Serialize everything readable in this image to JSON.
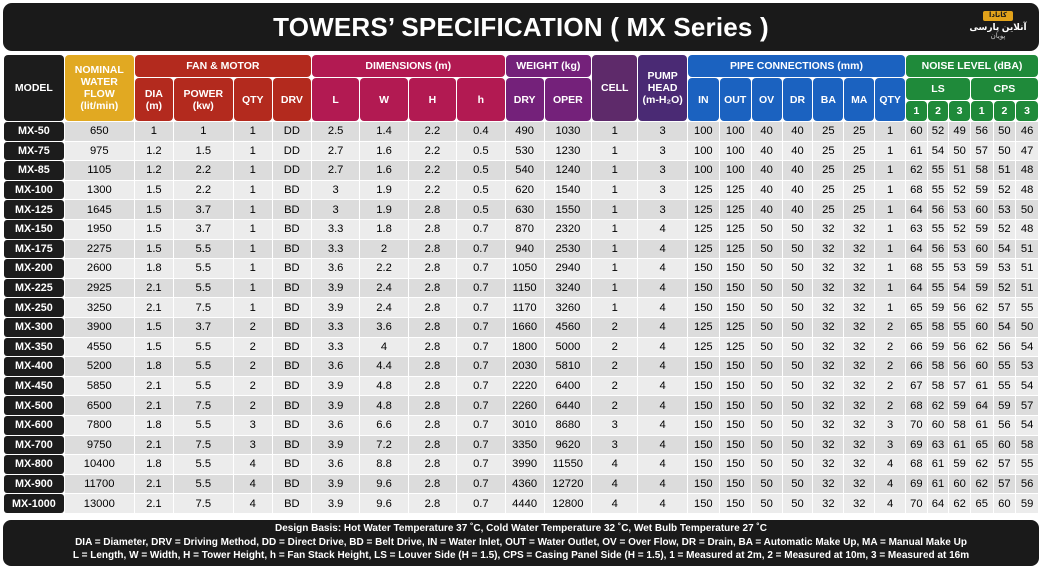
{
  "title": "TOWERS’ SPECIFICATION ( MX Series )",
  "logo": {
    "mark": "کانادا",
    "line1": "آنلاین پارسی",
    "line2": "پویان"
  },
  "headers": {
    "model": "MODEL",
    "flow": [
      "NOMINAL",
      "WATER",
      "FLOW",
      "(lit/min)"
    ],
    "fan_motor": "FAN & MOTOR",
    "dimensions": "DIMENSIONS (m)",
    "weight": "WEIGHT (kg)",
    "cell": "CELL",
    "pump": [
      "PUMP",
      "HEAD",
      "(m-H₂O)"
    ],
    "pipe": "PIPE CONNECTIONS (mm)",
    "noise": "NOISE LEVEL (dBA)",
    "fan_sub": [
      "DIA",
      "(m)",
      "POWER",
      "(kw)",
      "QTY",
      "DRV"
    ],
    "dim_sub": [
      "L",
      "W",
      "H",
      "h"
    ],
    "weight_sub": [
      "DRY",
      "OPER"
    ],
    "pipe_sub": [
      "IN",
      "OUT",
      "OV",
      "DR",
      "BA",
      "MA",
      "QTY"
    ],
    "noise_groups": [
      "LS",
      "CPS"
    ],
    "noise_sub": [
      "1",
      "2",
      "3",
      "1",
      "2",
      "3"
    ]
  },
  "rows": [
    [
      "MX-50",
      "650",
      "1",
      "1",
      "1",
      "DD",
      "2.5",
      "1.4",
      "2.2",
      "0.4",
      "490",
      "1030",
      "1",
      "3",
      "100",
      "100",
      "40",
      "40",
      "25",
      "25",
      "1",
      "60",
      "52",
      "49",
      "56",
      "50",
      "46"
    ],
    [
      "MX-75",
      "975",
      "1.2",
      "1.5",
      "1",
      "DD",
      "2.7",
      "1.6",
      "2.2",
      "0.5",
      "530",
      "1230",
      "1",
      "3",
      "100",
      "100",
      "40",
      "40",
      "25",
      "25",
      "1",
      "61",
      "54",
      "50",
      "57",
      "50",
      "47"
    ],
    [
      "MX-85",
      "1105",
      "1.2",
      "2.2",
      "1",
      "DD",
      "2.7",
      "1.6",
      "2.2",
      "0.5",
      "540",
      "1240",
      "1",
      "3",
      "100",
      "100",
      "40",
      "40",
      "25",
      "25",
      "1",
      "62",
      "55",
      "51",
      "58",
      "51",
      "48"
    ],
    [
      "MX-100",
      "1300",
      "1.5",
      "2.2",
      "1",
      "BD",
      "3",
      "1.9",
      "2.2",
      "0.5",
      "620",
      "1540",
      "1",
      "3",
      "125",
      "125",
      "40",
      "40",
      "25",
      "25",
      "1",
      "68",
      "55",
      "52",
      "59",
      "52",
      "48"
    ],
    [
      "MX-125",
      "1645",
      "1.5",
      "3.7",
      "1",
      "BD",
      "3",
      "1.9",
      "2.8",
      "0.5",
      "630",
      "1550",
      "1",
      "3",
      "125",
      "125",
      "40",
      "40",
      "25",
      "25",
      "1",
      "64",
      "56",
      "53",
      "60",
      "53",
      "50"
    ],
    [
      "MX-150",
      "1950",
      "1.5",
      "3.7",
      "1",
      "BD",
      "3.3",
      "1.8",
      "2.8",
      "0.7",
      "870",
      "2320",
      "1",
      "4",
      "125",
      "125",
      "50",
      "50",
      "32",
      "32",
      "1",
      "63",
      "55",
      "52",
      "59",
      "52",
      "48"
    ],
    [
      "MX-175",
      "2275",
      "1.5",
      "5.5",
      "1",
      "BD",
      "3.3",
      "2",
      "2.8",
      "0.7",
      "940",
      "2530",
      "1",
      "4",
      "125",
      "125",
      "50",
      "50",
      "32",
      "32",
      "1",
      "64",
      "56",
      "53",
      "60",
      "54",
      "51"
    ],
    [
      "MX-200",
      "2600",
      "1.8",
      "5.5",
      "1",
      "BD",
      "3.6",
      "2.2",
      "2.8",
      "0.7",
      "1050",
      "2940",
      "1",
      "4",
      "150",
      "150",
      "50",
      "50",
      "32",
      "32",
      "1",
      "68",
      "55",
      "53",
      "59",
      "53",
      "51"
    ],
    [
      "MX-225",
      "2925",
      "2.1",
      "5.5",
      "1",
      "BD",
      "3.9",
      "2.4",
      "2.8",
      "0.7",
      "1150",
      "3240",
      "1",
      "4",
      "150",
      "150",
      "50",
      "50",
      "32",
      "32",
      "1",
      "64",
      "55",
      "54",
      "59",
      "52",
      "51"
    ],
    [
      "MX-250",
      "3250",
      "2.1",
      "7.5",
      "1",
      "BD",
      "3.9",
      "2.4",
      "2.8",
      "0.7",
      "1170",
      "3260",
      "1",
      "4",
      "150",
      "150",
      "50",
      "50",
      "32",
      "32",
      "1",
      "65",
      "59",
      "56",
      "62",
      "57",
      "55"
    ],
    [
      "MX-300",
      "3900",
      "1.5",
      "3.7",
      "2",
      "BD",
      "3.3",
      "3.6",
      "2.8",
      "0.7",
      "1660",
      "4560",
      "2",
      "4",
      "125",
      "125",
      "50",
      "50",
      "32",
      "32",
      "2",
      "65",
      "58",
      "55",
      "60",
      "54",
      "50"
    ],
    [
      "MX-350",
      "4550",
      "1.5",
      "5.5",
      "2",
      "BD",
      "3.3",
      "4",
      "2.8",
      "0.7",
      "1800",
      "5000",
      "2",
      "4",
      "125",
      "125",
      "50",
      "50",
      "32",
      "32",
      "2",
      "66",
      "59",
      "56",
      "62",
      "56",
      "54"
    ],
    [
      "MX-400",
      "5200",
      "1.8",
      "5.5",
      "2",
      "BD",
      "3.6",
      "4.4",
      "2.8",
      "0.7",
      "2030",
      "5810",
      "2",
      "4",
      "150",
      "150",
      "50",
      "50",
      "32",
      "32",
      "2",
      "66",
      "58",
      "56",
      "60",
      "55",
      "53"
    ],
    [
      "MX-450",
      "5850",
      "2.1",
      "5.5",
      "2",
      "BD",
      "3.9",
      "4.8",
      "2.8",
      "0.7",
      "2220",
      "6400",
      "2",
      "4",
      "150",
      "150",
      "50",
      "50",
      "32",
      "32",
      "2",
      "67",
      "58",
      "57",
      "61",
      "55",
      "54"
    ],
    [
      "MX-500",
      "6500",
      "2.1",
      "7.5",
      "2",
      "BD",
      "3.9",
      "4.8",
      "2.8",
      "0.7",
      "2260",
      "6440",
      "2",
      "4",
      "150",
      "150",
      "50",
      "50",
      "32",
      "32",
      "2",
      "68",
      "62",
      "59",
      "64",
      "59",
      "57"
    ],
    [
      "MX-600",
      "7800",
      "1.8",
      "5.5",
      "3",
      "BD",
      "3.6",
      "6.6",
      "2.8",
      "0.7",
      "3010",
      "8680",
      "3",
      "4",
      "150",
      "150",
      "50",
      "50",
      "32",
      "32",
      "3",
      "70",
      "60",
      "58",
      "61",
      "56",
      "54"
    ],
    [
      "MX-700",
      "9750",
      "2.1",
      "7.5",
      "3",
      "BD",
      "3.9",
      "7.2",
      "2.8",
      "0.7",
      "3350",
      "9620",
      "3",
      "4",
      "150",
      "150",
      "50",
      "50",
      "32",
      "32",
      "3",
      "69",
      "63",
      "61",
      "65",
      "60",
      "58"
    ],
    [
      "MX-800",
      "10400",
      "1.8",
      "5.5",
      "4",
      "BD",
      "3.6",
      "8.8",
      "2.8",
      "0.7",
      "3990",
      "11550",
      "4",
      "4",
      "150",
      "150",
      "50",
      "50",
      "32",
      "32",
      "4",
      "68",
      "61",
      "59",
      "62",
      "57",
      "55"
    ],
    [
      "MX-900",
      "11700",
      "2.1",
      "5.5",
      "4",
      "BD",
      "3.9",
      "9.6",
      "2.8",
      "0.7",
      "4360",
      "12720",
      "4",
      "4",
      "150",
      "150",
      "50",
      "50",
      "32",
      "32",
      "4",
      "69",
      "61",
      "60",
      "62",
      "57",
      "56"
    ],
    [
      "MX-1000",
      "13000",
      "2.1",
      "7.5",
      "4",
      "BD",
      "3.9",
      "9.6",
      "2.8",
      "0.7",
      "4440",
      "12800",
      "4",
      "4",
      "150",
      "150",
      "50",
      "50",
      "32",
      "32",
      "4",
      "70",
      "64",
      "62",
      "65",
      "60",
      "59"
    ]
  ],
  "footer": [
    "Design Basis: Hot Water Temperature 37 ˚C, Cold Water Temperature 32 ˚C, Wet Bulb Temperature 27 ˚C",
    "DIA = Diameter, DRV = Driving Method, DD = Direct Drive, BD = Belt Drive, IN = Water Inlet, OUT = Water Outlet, OV = Over Flow, DR = Drain, BA = Automatic Make Up, MA = Manual Make Up",
    "L = Length, W = Width, H = Tower Height, h = Fan Stack Height, LS = Louver Side (H = 1.5), CPS = Casing Panel Side (H = 1.5), 1 = Measured at 2m, 2 = Measured at 10m, 3 = Measured at 16m"
  ],
  "colors": {
    "model": "#1c1c1c",
    "flow": "#e1a922",
    "fan": "#b32a1e",
    "dimensions": "#b21a52",
    "weight": "#74217a",
    "cell": "#5e2a6a",
    "pump": "#4a2a74",
    "pipe": "#1b62c0",
    "noise": "#1f8a3a"
  }
}
